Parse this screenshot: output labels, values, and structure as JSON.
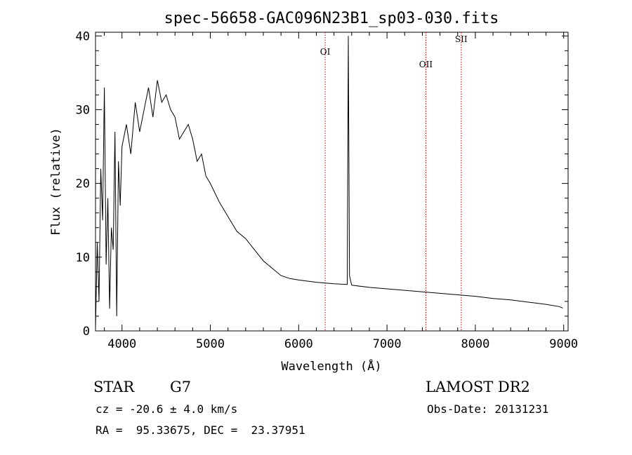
{
  "chart_data": {
    "type": "line",
    "title": "spec-56658-GAC096N23B1_sp03-030.fits",
    "xlabel": "Wavelength (Å)",
    "ylabel": "Flux (relative)",
    "xlim": [
      3700,
      9050
    ],
    "ylim": [
      0,
      40.5
    ],
    "xticks": [
      4000,
      5000,
      6000,
      7000,
      8000,
      9000
    ],
    "yticks": [
      0,
      10,
      20,
      30,
      40
    ],
    "grid": false,
    "series": [
      {
        "x": [
          3700,
          3720,
          3740,
          3760,
          3780,
          3800,
          3820,
          3840,
          3860,
          3880,
          3900,
          3920,
          3940,
          3960,
          3980,
          4000,
          4050,
          4100,
          4150,
          4200,
          4250,
          4300,
          4350,
          4400,
          4450,
          4500,
          4550,
          4600,
          4650,
          4700,
          4750,
          4800,
          4850,
          4900,
          4950,
          5000,
          5100,
          5200,
          5300,
          5400,
          5500,
          5600,
          5700,
          5800,
          5900,
          6000,
          6200,
          6400,
          6550,
          6562,
          6575,
          6600,
          6800,
          7000,
          7200,
          7400,
          7600,
          7800,
          8000,
          8200,
          8400,
          8600,
          8800,
          8950,
          8990
        ],
        "y": [
          0.3,
          12,
          4,
          22,
          15,
          33,
          9,
          18,
          3,
          14,
          11,
          27,
          2,
          23,
          17,
          25,
          28,
          24,
          31,
          27,
          30,
          33,
          29,
          34,
          31,
          32,
          30,
          29,
          26,
          27,
          28,
          26,
          23,
          24,
          21,
          20,
          17.5,
          15.5,
          13.5,
          12.5,
          11,
          9.5,
          8.5,
          7.5,
          7.1,
          6.9,
          6.6,
          6.4,
          6.3,
          40,
          7.5,
          6.2,
          5.9,
          5.7,
          5.5,
          5.3,
          5.1,
          4.9,
          4.7,
          4.4,
          4.2,
          3.9,
          3.6,
          3.3,
          3.1
        ]
      }
    ],
    "line_markers": [
      {
        "label": "OI",
        "x": 6300
      },
      {
        "label": "OII",
        "x": 7440
      },
      {
        "label": "SII",
        "x": 7840
      }
    ]
  },
  "info": {
    "object_class": "STAR",
    "subclass": "G7",
    "survey": "LAMOST DR2",
    "cz": "cz = -20.6 ± 4.0 km/s",
    "obs_date": "Obs-Date: 20131231",
    "coords": "RA =  95.33675, DEC =  23.37951"
  },
  "colors": {
    "spectrum": "#000000",
    "marker_line": "#cc0000",
    "axes": "#000000"
  }
}
